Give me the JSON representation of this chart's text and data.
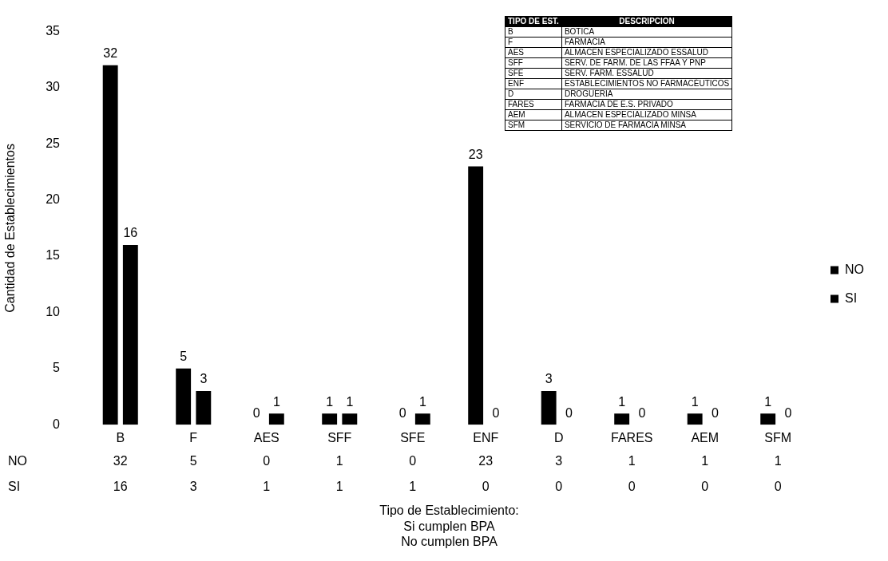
{
  "chart_data": {
    "type": "bar",
    "xlabel": "Tipo de Establecimiento:\nSi cumplen BPA\nNo cumplen BPA",
    "ylabel": "Cantidad de Establecimientos",
    "categories": [
      "B",
      "F",
      "AES",
      "SFF",
      "SFE",
      "ENF",
      "D",
      "FARES",
      "AEM",
      "SFM"
    ],
    "series": [
      {
        "name": "NO",
        "color": "#000000",
        "values": [
          32,
          5,
          0,
          1,
          0,
          23,
          3,
          1,
          1,
          1
        ],
        "value_labels": [
          "32",
          "5",
          "0",
          "1",
          "0",
          "23",
          "3",
          "1",
          "1",
          "1"
        ]
      },
      {
        "name": "SI",
        "color": "#000000",
        "values": [
          16,
          3,
          1,
          1,
          1,
          0,
          0,
          0,
          0,
          0
        ],
        "value_labels": [
          "16",
          "3",
          "1",
          "1",
          "1",
          "0",
          "0",
          "0",
          "0",
          "0"
        ]
      }
    ],
    "ylim": [
      0,
      35
    ],
    "yticks": [
      0,
      5,
      10,
      15,
      20,
      25,
      30,
      35
    ],
    "grid": false,
    "legend": "right",
    "annotations": [
      "TIPO DE EST.",
      "DESCRIPCION",
      "B",
      "BOTICA",
      "F",
      "FARMACIA",
      "AES",
      "ALMACEN ESPECIALIZADO ESSALUD",
      "SFF",
      "SERV. DE FARM. DE LAS FFAA Y PNP",
      "SFE",
      "SERV. FARM. ESSALUD",
      "ENF",
      "ESTABLECIMIENTOS NO FARMACÉUTICOS",
      "D",
      "DROGUERIA",
      "FARES",
      "FARMACIA DE E.S. PRIVADO",
      "AEM",
      "ALMACEN ESPECIALIZADO MINSA",
      "SFM",
      "SERVICIO DE FARMACIA MINSA",
      "32",
      "5",
      "0",
      "1",
      "0",
      "23",
      "3",
      "1",
      "1",
      "1",
      "16",
      "3",
      "1",
      "1",
      "1",
      "0",
      "0",
      "0",
      "0",
      "0"
    ]
  }
}
